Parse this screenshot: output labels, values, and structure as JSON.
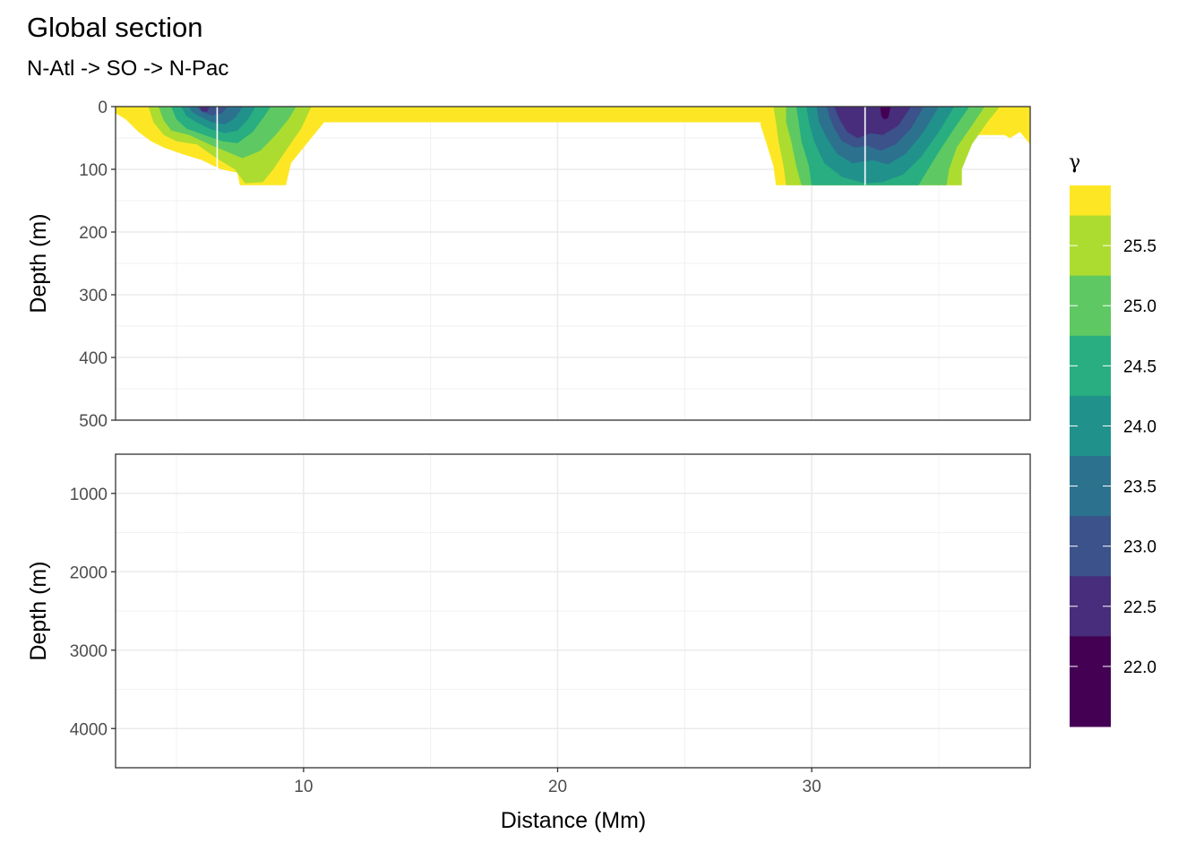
{
  "chart_data": {
    "type": "heatmap",
    "title": "Global section",
    "subtitle": "N-Atl -> SO -> N-Pac",
    "xlabel": "Distance (Mm)",
    "xlim": [
      2.6,
      38.6
    ],
    "x_ticks": [
      "10",
      "20",
      "30"
    ],
    "grid": true,
    "panels": [
      {
        "ylabel": "Depth (m)",
        "ylim": [
          0,
          500
        ],
        "y_ticks": [
          "0",
          "100",
          "200",
          "300",
          "400",
          "500"
        ],
        "reversed": true
      },
      {
        "ylabel": "Depth (m)",
        "ylim": [
          500,
          4500
        ],
        "y_ticks": [
          "1000",
          "2000",
          "3000",
          "4000"
        ],
        "reversed": true
      }
    ],
    "legend": {
      "title": "γ",
      "position": "right",
      "labels": [
        "25.5",
        "25.0",
        "24.5",
        "24.0",
        "23.5",
        "23.0",
        "22.5",
        "22.0"
      ],
      "bins": [
        {
          "lower": 25.75,
          "upper": 26.0,
          "color": "#fde725"
        },
        {
          "lower": 25.25,
          "upper": 25.75,
          "color": "#addc30"
        },
        {
          "lower": 24.75,
          "upper": 25.25,
          "color": "#5ec962"
        },
        {
          "lower": 24.25,
          "upper": 24.75,
          "color": "#28ae80"
        },
        {
          "lower": 23.75,
          "upper": 24.25,
          "color": "#21918c"
        },
        {
          "lower": 23.25,
          "upper": 23.75,
          "color": "#2c728e"
        },
        {
          "lower": 22.75,
          "upper": 23.25,
          "color": "#3b528b"
        },
        {
          "lower": 22.25,
          "upper": 22.75,
          "color": "#472d7b"
        },
        {
          "lower": 21.5,
          "upper": 22.25,
          "color": "#440154"
        }
      ]
    },
    "section_breaks_x": [
      6.6,
      32.1
    ],
    "fields": [
      {
        "name": "north-atlantic",
        "x_range": [
          2.6,
          10.8
        ],
        "max_depth": 125,
        "rings": [
          {
            "color": "#fde725",
            "pts": [
              [
                2.6,
                0
              ],
              [
                10.8,
                0
              ],
              [
                10.8,
                25
              ],
              [
                10.2,
                55
              ],
              [
                9.5,
                90
              ],
              [
                9.3,
                125
              ],
              [
                7.5,
                125
              ],
              [
                7.4,
                105
              ],
              [
                6.8,
                100
              ],
              [
                6.5,
                95
              ],
              [
                6.0,
                85
              ],
              [
                5.2,
                75
              ],
              [
                4.5,
                65
              ],
              [
                4.0,
                55
              ],
              [
                3.5,
                40
              ],
              [
                3.0,
                20
              ],
              [
                2.6,
                10
              ]
            ]
          },
          {
            "color": "#addc30",
            "pts": [
              [
                3.9,
                0
              ],
              [
                10.3,
                0
              ],
              [
                9.9,
                35
              ],
              [
                9.3,
                70
              ],
              [
                8.8,
                100
              ],
              [
                8.4,
                120
              ],
              [
                7.7,
                122
              ],
              [
                7.3,
                100
              ],
              [
                6.5,
                80
              ],
              [
                5.8,
                60
              ],
              [
                5.0,
                55
              ],
              [
                4.5,
                45
              ],
              [
                4.1,
                25
              ]
            ]
          },
          {
            "color": "#5ec962",
            "pts": [
              [
                4.3,
                0
              ],
              [
                9.7,
                0
              ],
              [
                9.4,
                20
              ],
              [
                8.9,
                45
              ],
              [
                8.3,
                70
              ],
              [
                7.6,
                82
              ],
              [
                7.0,
                72
              ],
              [
                6.3,
                60
              ],
              [
                5.5,
                45
              ],
              [
                4.8,
                38
              ],
              [
                4.5,
                22
              ]
            ]
          },
          {
            "color": "#28ae80",
            "pts": [
              [
                4.8,
                0
              ],
              [
                8.7,
                0
              ],
              [
                8.4,
                18
              ],
              [
                8.0,
                40
              ],
              [
                7.4,
                58
              ],
              [
                6.8,
                55
              ],
              [
                6.1,
                45
              ],
              [
                5.4,
                35
              ],
              [
                5.0,
                20
              ]
            ]
          },
          {
            "color": "#21918c",
            "pts": [
              [
                5.2,
                0
              ],
              [
                8.1,
                0
              ],
              [
                7.8,
                20
              ],
              [
                7.4,
                38
              ],
              [
                6.9,
                42
              ],
              [
                6.3,
                35
              ],
              [
                5.8,
                25
              ],
              [
                5.4,
                15
              ]
            ]
          },
          {
            "color": "#2c728e",
            "pts": [
              [
                5.5,
                0
              ],
              [
                7.6,
                0
              ],
              [
                7.3,
                18
              ],
              [
                6.9,
                28
              ],
              [
                6.4,
                25
              ],
              [
                5.9,
                15
              ],
              [
                5.6,
                8
              ]
            ]
          },
          {
            "color": "#3b528b",
            "pts": [
              [
                5.8,
                0
              ],
              [
                6.2,
                0
              ],
              [
                6.5,
                0
              ],
              [
                7.0,
                0
              ],
              [
                6.8,
                10
              ],
              [
                6.4,
                14
              ],
              [
                6.0,
                8
              ]
            ]
          },
          {
            "color": "#472d7b",
            "pts": [
              [
                5.9,
                0
              ],
              [
                6.3,
                0
              ],
              [
                6.2,
                8
              ],
              [
                6.0,
                7
              ]
            ]
          }
        ]
      },
      {
        "name": "north-pacific",
        "x_range": [
          28.0,
          38.6
        ],
        "max_depth": 125,
        "rings": [
          {
            "color": "#fde725",
            "pts": [
              [
                28.0,
                0
              ],
              [
                38.6,
                0
              ],
              [
                38.6,
                60
              ],
              [
                38.2,
                40
              ],
              [
                37.8,
                50
              ],
              [
                37.6,
                45
              ],
              [
                36.5,
                45
              ],
              [
                36.3,
                55
              ],
              [
                35.9,
                90
              ],
              [
                35.9,
                125
              ],
              [
                28.6,
                125
              ],
              [
                28.5,
                95
              ],
              [
                28.2,
                55
              ],
              [
                28.0,
                30
              ]
            ]
          },
          {
            "color": "#addc30",
            "pts": [
              [
                28.5,
                0
              ],
              [
                37.4,
                0
              ],
              [
                36.9,
                25
              ],
              [
                36.3,
                60
              ],
              [
                35.9,
                100
              ],
              [
                35.9,
                125
              ],
              [
                29.0,
                125
              ],
              [
                28.9,
                95
              ],
              [
                28.7,
                55
              ],
              [
                28.6,
                25
              ]
            ]
          },
          {
            "color": "#5ec962",
            "pts": [
              [
                29.0,
                0
              ],
              [
                36.8,
                0
              ],
              [
                36.3,
                30
              ],
              [
                35.7,
                65
              ],
              [
                35.4,
                100
              ],
              [
                35.3,
                125
              ],
              [
                29.6,
                125
              ],
              [
                29.4,
                95
              ],
              [
                29.2,
                55
              ],
              [
                29.0,
                25
              ]
            ]
          },
          {
            "color": "#28ae80",
            "pts": [
              [
                29.4,
                0
              ],
              [
                36.2,
                0
              ],
              [
                35.6,
                35
              ],
              [
                35.0,
                72
              ],
              [
                34.5,
                105
              ],
              [
                34.2,
                125
              ],
              [
                30.0,
                125
              ],
              [
                29.9,
                95
              ],
              [
                29.6,
                55
              ],
              [
                29.5,
                25
              ]
            ]
          },
          {
            "color": "#21918c",
            "pts": [
              [
                29.8,
                0
              ],
              [
                35.6,
                0
              ],
              [
                35.0,
                40
              ],
              [
                34.3,
                80
              ],
              [
                33.6,
                108
              ],
              [
                32.8,
                120
              ],
              [
                32.1,
                122
              ],
              [
                31.2,
                112
              ],
              [
                30.5,
                90
              ],
              [
                30.1,
                55
              ],
              [
                29.9,
                25
              ]
            ]
          },
          {
            "color": "#2c728e",
            "pts": [
              [
                30.2,
                0
              ],
              [
                35.0,
                0
              ],
              [
                34.4,
                40
              ],
              [
                33.7,
                75
              ],
              [
                33.0,
                92
              ],
              [
                32.4,
                85
              ],
              [
                31.6,
                90
              ],
              [
                31.0,
                75
              ],
              [
                30.6,
                50
              ],
              [
                30.3,
                25
              ]
            ]
          },
          {
            "color": "#3b528b",
            "pts": [
              [
                30.6,
                0
              ],
              [
                34.4,
                0
              ],
              [
                33.9,
                35
              ],
              [
                33.3,
                60
              ],
              [
                32.7,
                70
              ],
              [
                32.2,
                62
              ],
              [
                31.7,
                65
              ],
              [
                31.2,
                55
              ],
              [
                30.9,
                35
              ],
              [
                30.7,
                15
              ]
            ]
          },
          {
            "color": "#472d7b",
            "pts": [
              [
                30.9,
                0
              ],
              [
                32.0,
                0
              ],
              [
                33.9,
                0
              ],
              [
                33.4,
                30
              ],
              [
                32.8,
                45
              ],
              [
                32.3,
                42
              ],
              [
                31.8,
                50
              ],
              [
                31.4,
                40
              ],
              [
                31.1,
                20
              ]
            ]
          },
          {
            "color": "#440154",
            "pts": [
              [
                32.7,
                0
              ],
              [
                33.1,
                0
              ],
              [
                33.0,
                18
              ],
              [
                32.85,
                20
              ],
              [
                32.75,
                15
              ]
            ]
          }
        ]
      }
    ]
  }
}
